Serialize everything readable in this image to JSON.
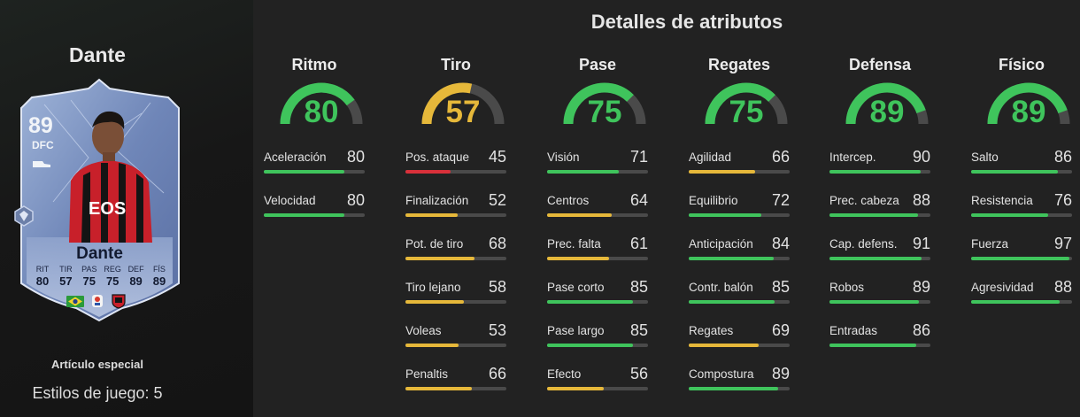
{
  "player": {
    "name": "Dante",
    "rating": "89",
    "position": "DFC",
    "card_stats": [
      {
        "label": "RIT",
        "value": "80"
      },
      {
        "label": "TIR",
        "value": "57"
      },
      {
        "label": "PAS",
        "value": "75"
      },
      {
        "label": "REG",
        "value": "75"
      },
      {
        "label": "DEF",
        "value": "89"
      },
      {
        "label": "FÍS",
        "value": "89"
      }
    ],
    "special_item": "Artículo especial",
    "playstyles": "Estilos de juego: 5"
  },
  "section_title": "Detalles de atributos",
  "colors": {
    "high": "#3fc45c",
    "mid": "#e6b83a",
    "low": "#d9303a",
    "track": "#4a4a4a"
  },
  "categories": [
    {
      "title": "Ritmo",
      "value": 80,
      "stats": [
        {
          "label": "Aceleración",
          "value": 80
        },
        {
          "label": "Velocidad",
          "value": 80
        }
      ]
    },
    {
      "title": "Tiro",
      "value": 57,
      "stats": [
        {
          "label": "Pos. ataque",
          "value": 45
        },
        {
          "label": "Finalización",
          "value": 52
        },
        {
          "label": "Pot. de tiro",
          "value": 68
        },
        {
          "label": "Tiro lejano",
          "value": 58
        },
        {
          "label": "Voleas",
          "value": 53
        },
        {
          "label": "Penaltis",
          "value": 66
        }
      ]
    },
    {
      "title": "Pase",
      "value": 75,
      "stats": [
        {
          "label": "Visión",
          "value": 71
        },
        {
          "label": "Centros",
          "value": 64
        },
        {
          "label": "Prec. falta",
          "value": 61
        },
        {
          "label": "Pase corto",
          "value": 85
        },
        {
          "label": "Pase largo",
          "value": 85
        },
        {
          "label": "Efecto",
          "value": 56
        }
      ]
    },
    {
      "title": "Regates",
      "value": 75,
      "stats": [
        {
          "label": "Agilidad",
          "value": 66
        },
        {
          "label": "Equilibrio",
          "value": 72
        },
        {
          "label": "Anticipación",
          "value": 84
        },
        {
          "label": "Contr. balón",
          "value": 85
        },
        {
          "label": "Regates",
          "value": 69
        },
        {
          "label": "Compostura",
          "value": 89
        }
      ]
    },
    {
      "title": "Defensa",
      "value": 89,
      "stats": [
        {
          "label": "Intercep.",
          "value": 90
        },
        {
          "label": "Prec. cabeza",
          "value": 88
        },
        {
          "label": "Cap. defens.",
          "value": 91
        },
        {
          "label": "Robos",
          "value": 89
        },
        {
          "label": "Entradas",
          "value": 86
        }
      ]
    },
    {
      "title": "Físico",
      "value": 89,
      "stats": [
        {
          "label": "Salto",
          "value": 86
        },
        {
          "label": "Resistencia",
          "value": 76
        },
        {
          "label": "Fuerza",
          "value": 97
        },
        {
          "label": "Agresividad",
          "value": 88
        }
      ]
    }
  ]
}
